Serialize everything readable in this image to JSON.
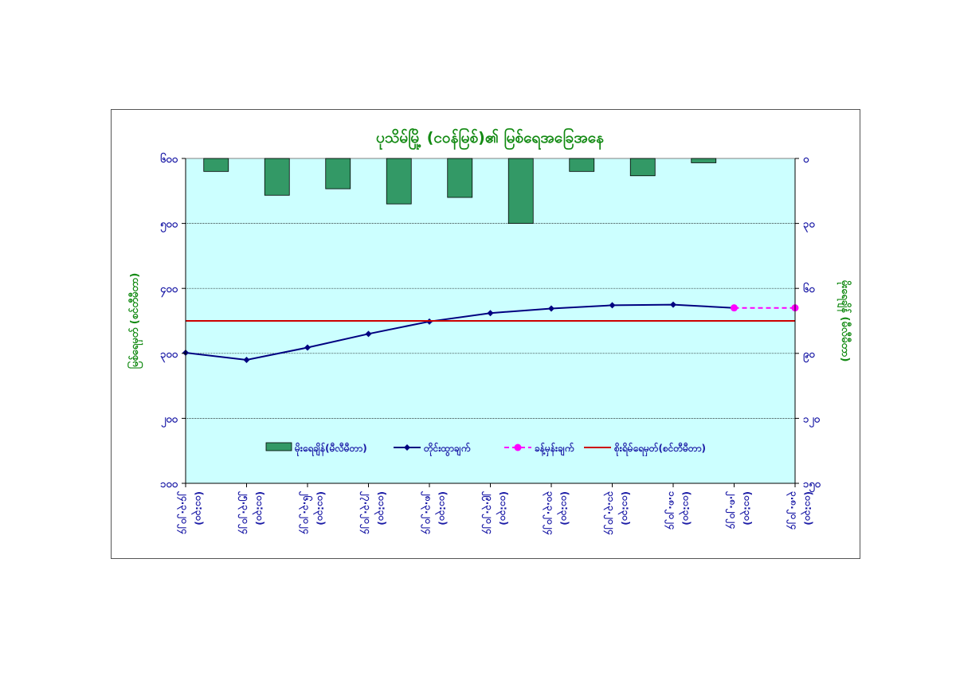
{
  "chart_data": {
    "type": "bar+line",
    "title": "ပုသိမ်မြို့ (ငဝန်မြစ်)၏ မြစ်ရေအခြေအနေ",
    "left_axis": {
      "label": "မြစ်ရေမှတ် (စင်တီမီတာ)",
      "ticks": [
        "၆၀၀",
        "၅၀၀",
        "၄၀၀",
        "၃၀၀",
        "၂၀၀",
        "၁၀၀"
      ],
      "ylim": [
        100,
        600
      ]
    },
    "right_axis": {
      "label": "မိုးရေချိန် (မီလီမီတာ)",
      "ticks": [
        "၀",
        "၃၀",
        "၆၀",
        "၉၀",
        "၁၂၀",
        "၁၅၀"
      ],
      "ylim": [
        0,
        150
      ],
      "inverted": true
    },
    "categories": [
      [
        "၂၄.၃.၂၀၂၄",
        "(၀၁:၃၀)"
      ],
      [
        "၂၅.၃.၂၀၂၄",
        "(၀၁:၃၀)"
      ],
      [
        "၂၆.၃.၂၀၂၄",
        "(၀၁:၃၀)"
      ],
      [
        "၂၇.၃.၂၀၂၄",
        "(၀၁:၃၀)"
      ],
      [
        "၂၈.၃.၂၀၂၄",
        "(၀၁:၃၀)"
      ],
      [
        "၂၉.၃.၂၀၂၄",
        "(၀၁:၃၀)"
      ],
      [
        "၃၀.၃.၂၀၂၄",
        "(၀၁:၃၀)"
      ],
      [
        "၃၁.၃.၂၀၂၄",
        "(၀၁:၃၀)"
      ],
      [
        "၁.၈.၂၀၂၄",
        "(၀၁:၃၀)"
      ],
      [
        "၂.၈.၂၀၂၄",
        "(၀၁:၃၀)"
      ],
      [
        "၃.၈.၂၀၂၄",
        "(၀၁:၃၀)"
      ]
    ],
    "series": [
      {
        "name": "မိုးရေချိန်(မီလီမီတာ)",
        "type": "bar",
        "axis": "right",
        "color": "#339966",
        "values": [
          6,
          17,
          14,
          21,
          18,
          30,
          6,
          8,
          2,
          null,
          null
        ]
      },
      {
        "name": "တိုင်းထွာချက်",
        "type": "line",
        "axis": "left",
        "color": "#000080",
        "marker": "diamond",
        "values": [
          301,
          290,
          309,
          330,
          349,
          362,
          369,
          374,
          375,
          370,
          null
        ]
      },
      {
        "name": "ခန့်မှန်းချက်",
        "type": "line",
        "axis": "left",
        "color": "#ff00ff",
        "dashed": true,
        "marker": "circle",
        "values": [
          null,
          null,
          null,
          null,
          null,
          null,
          null,
          null,
          null,
          370,
          370
        ]
      },
      {
        "name": "စိုးရိမ်ရေမှတ်(စင်တီမီတာ)",
        "type": "line",
        "axis": "left",
        "color": "#cc0000",
        "values": [
          350,
          350,
          350,
          350,
          350,
          350,
          350,
          350,
          350,
          350,
          350
        ]
      }
    ],
    "plot_background": "#ccffff",
    "grid": true,
    "legend_position": "bottom"
  }
}
